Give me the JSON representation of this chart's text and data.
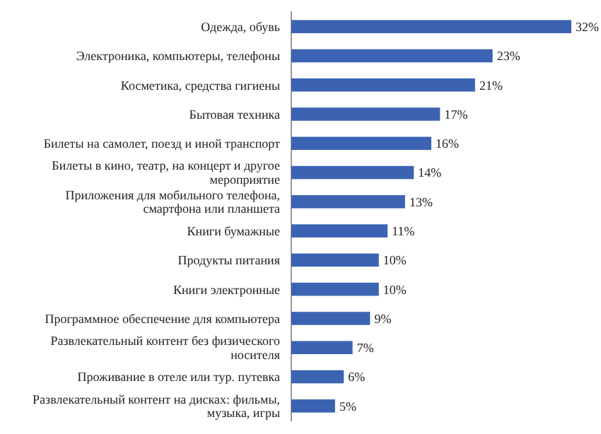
{
  "chart_data": {
    "type": "bar",
    "orientation": "horizontal",
    "categories": [
      "Одежда, обувь",
      "Электроника, компьютеры, телефоны",
      "Косметика, средства гигиены",
      "Бытовая техника",
      "Билеты на самолет, поезд и иной транспорт",
      "Билеты в кино, театр, на концерт и другое мероприятие",
      "Приложения для мобильного телефона, смартфона или планшета",
      "Книги бумажные",
      "Продукты питания",
      "Книги электронные",
      "Программное обеспечение для компьютера",
      "Развлекательный контент без физического носителя",
      "Проживание в отеле или тур. путевка",
      "Развлекательный контент на дисках: фильмы, музыка, игры"
    ],
    "values": [
      32,
      23,
      21,
      17,
      16,
      14,
      13,
      11,
      10,
      10,
      9,
      7,
      6,
      5
    ],
    "value_labels": [
      "32%",
      "23%",
      "21%",
      "17%",
      "16%",
      "14%",
      "13%",
      "11%",
      "10%",
      "10%",
      "9%",
      "7%",
      "6%",
      "5%"
    ],
    "color": "#3b63b2",
    "xlim": [
      0,
      32
    ]
  }
}
